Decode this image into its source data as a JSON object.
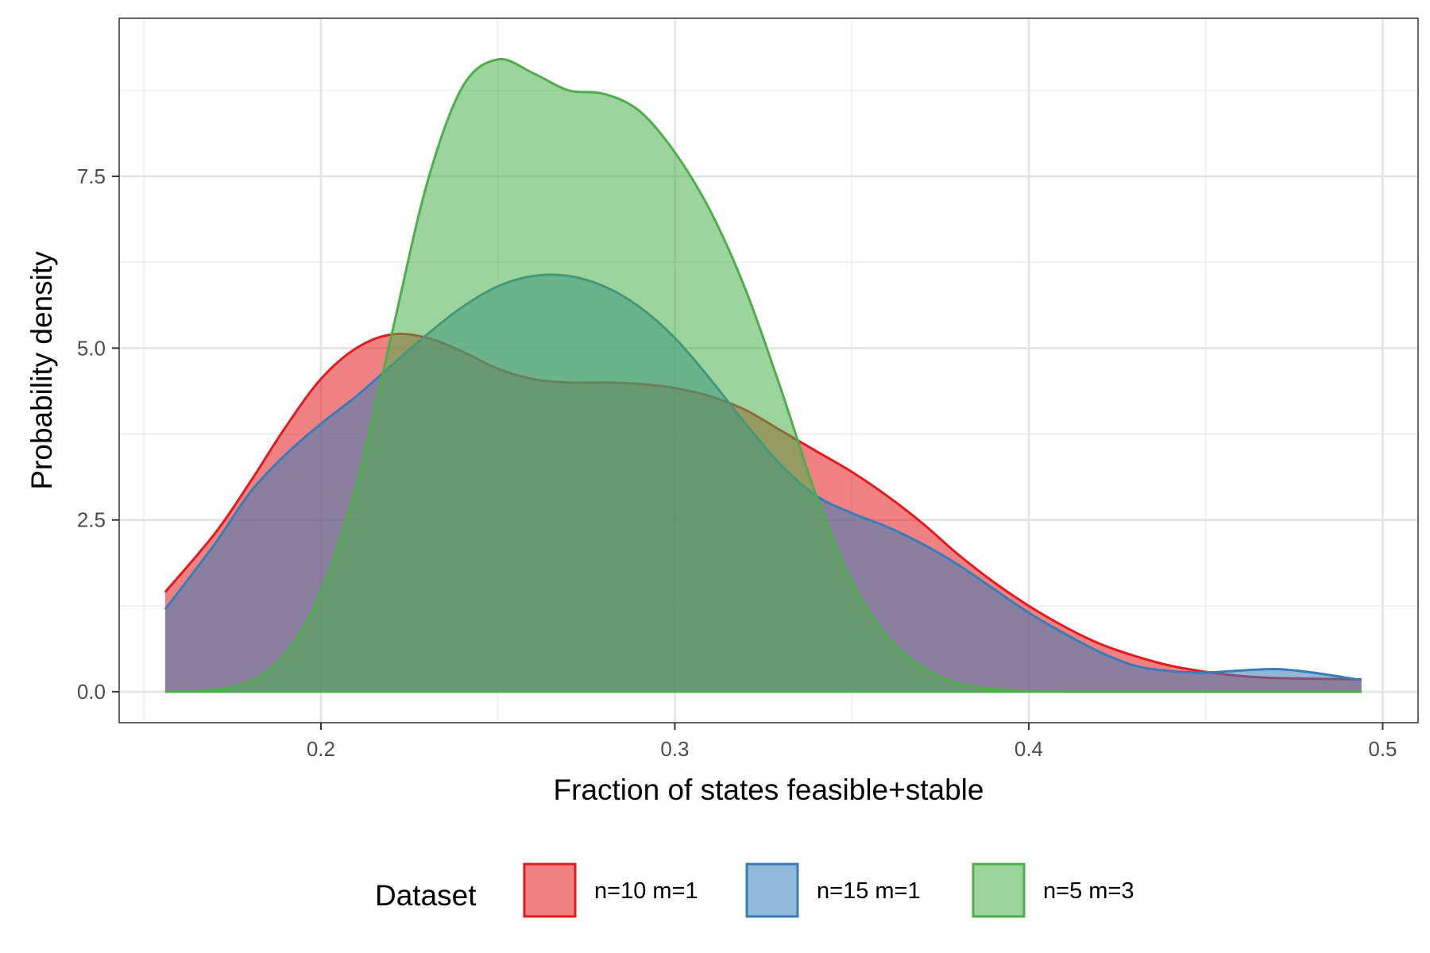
{
  "chart_data": {
    "type": "area",
    "xlabel": "Fraction of states feasible+stable",
    "ylabel": "Probability density",
    "xlim": [
      0.143,
      0.51
    ],
    "ylim": [
      -0.45,
      9.8
    ],
    "x_ticks": [
      0.2,
      0.3,
      0.4,
      0.5
    ],
    "x_tick_labels": [
      "0.2",
      "0.3",
      "0.4",
      "0.5"
    ],
    "y_ticks": [
      0.0,
      2.5,
      5.0,
      7.5
    ],
    "y_tick_labels": [
      "0.0",
      "2.5",
      "5.0",
      "7.5"
    ],
    "grid": true,
    "legend": {
      "title": "Dataset",
      "position": "bottom"
    },
    "series": [
      {
        "name": "n=10 m=1",
        "line_color": "#E41A1C",
        "fill_color": "#E41A1C",
        "fill_opacity": 0.55,
        "x": [
          0.156,
          0.17,
          0.18,
          0.19,
          0.2,
          0.21,
          0.22,
          0.23,
          0.24,
          0.25,
          0.26,
          0.27,
          0.28,
          0.29,
          0.3,
          0.31,
          0.32,
          0.33,
          0.34,
          0.35,
          0.36,
          0.37,
          0.38,
          0.39,
          0.4,
          0.41,
          0.42,
          0.43,
          0.44,
          0.45,
          0.46,
          0.47,
          0.48,
          0.494
        ],
        "y": [
          1.45,
          2.3,
          3.05,
          3.85,
          4.55,
          5.0,
          5.2,
          5.15,
          4.95,
          4.7,
          4.55,
          4.5,
          4.5,
          4.48,
          4.42,
          4.3,
          4.1,
          3.8,
          3.5,
          3.2,
          2.85,
          2.45,
          2.0,
          1.6,
          1.25,
          0.95,
          0.7,
          0.52,
          0.38,
          0.29,
          0.23,
          0.2,
          0.19,
          0.18
        ]
      },
      {
        "name": "n=15 m=1",
        "line_color": "#377EB8",
        "fill_color": "#377EB8",
        "fill_opacity": 0.55,
        "x": [
          0.156,
          0.17,
          0.18,
          0.19,
          0.2,
          0.21,
          0.22,
          0.23,
          0.24,
          0.25,
          0.26,
          0.27,
          0.28,
          0.29,
          0.3,
          0.31,
          0.32,
          0.33,
          0.34,
          0.35,
          0.36,
          0.37,
          0.38,
          0.39,
          0.4,
          0.41,
          0.42,
          0.43,
          0.44,
          0.45,
          0.46,
          0.47,
          0.48,
          0.494
        ],
        "y": [
          1.2,
          2.15,
          2.9,
          3.45,
          3.9,
          4.3,
          4.75,
          5.2,
          5.6,
          5.9,
          6.05,
          6.05,
          5.9,
          5.6,
          5.15,
          4.55,
          3.9,
          3.3,
          2.85,
          2.6,
          2.4,
          2.15,
          1.85,
          1.5,
          1.15,
          0.85,
          0.58,
          0.38,
          0.3,
          0.28,
          0.31,
          0.33,
          0.28,
          0.17
        ]
      },
      {
        "name": "n=5 m=3",
        "line_color": "#4DAF4A",
        "fill_color": "#4DAF4A",
        "fill_opacity": 0.55,
        "x": [
          0.156,
          0.17,
          0.18,
          0.19,
          0.2,
          0.21,
          0.22,
          0.23,
          0.24,
          0.25,
          0.26,
          0.27,
          0.28,
          0.29,
          0.3,
          0.31,
          0.32,
          0.33,
          0.34,
          0.35,
          0.36,
          0.37,
          0.38,
          0.39,
          0.4,
          0.41,
          0.42,
          0.43,
          0.44,
          0.45,
          0.46,
          0.47,
          0.48,
          0.494
        ],
        "y": [
          0.0,
          0.03,
          0.15,
          0.55,
          1.45,
          3.0,
          5.2,
          7.4,
          8.8,
          9.2,
          9.0,
          8.75,
          8.7,
          8.45,
          7.85,
          7.0,
          5.85,
          4.4,
          2.85,
          1.6,
          0.8,
          0.35,
          0.12,
          0.04,
          0.01,
          0.0,
          0.0,
          0.0,
          0.0,
          0.0,
          0.0,
          0.0,
          0.0,
          0.0
        ]
      }
    ]
  }
}
